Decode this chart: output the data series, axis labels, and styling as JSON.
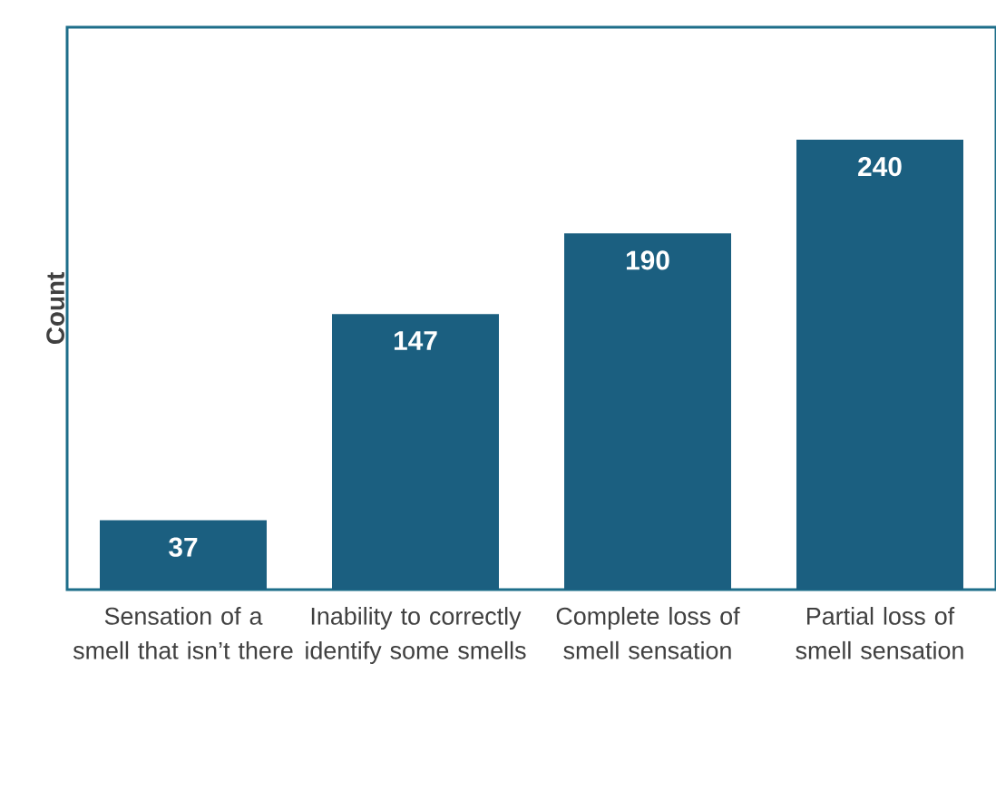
{
  "chart_data": {
    "type": "bar",
    "ylabel": "Count",
    "categories": [
      "Sensation of a smell that isn’t there",
      "Inability to correctly identify some smells",
      "Complete loss of smell sensation",
      "Partial loss of smell sensation"
    ],
    "values": [
      37,
      147,
      190,
      240
    ],
    "color": "#1b5f80",
    "ylim": [
      0,
      300
    ],
    "tick_labels": "x",
    "data_labels": true
  }
}
